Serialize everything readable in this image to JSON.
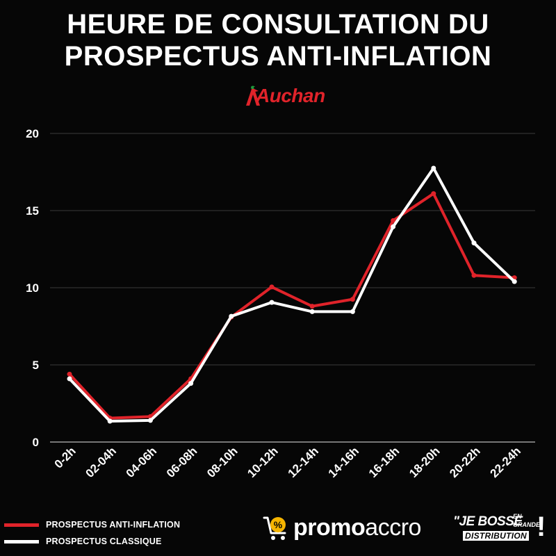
{
  "header": {
    "title_line1": "HEURE DE CONSULTATION DU",
    "title_line2": "PROSPECTUS ANTI-INFLATION",
    "brand_logo_text": "Auchan"
  },
  "colors": {
    "background": "#060606",
    "anti_inflation": "#e0232a",
    "classique": "#ffffff",
    "grid": "#3a3a3a",
    "promo_icon": "#f5b400"
  },
  "chart_data": {
    "type": "line",
    "categories": [
      "0-2h",
      "02-04h",
      "04-06h",
      "06-08h",
      "08-10h",
      "10-12h",
      "12-14h",
      "14-16h",
      "16-18h",
      "18-20h",
      "20-22h",
      "22-24h"
    ],
    "series": [
      {
        "name": "PROSPECTUS ANTI-INFLATION",
        "color": "#e0232a",
        "values": [
          4.4,
          1.55,
          1.65,
          4.1,
          8.1,
          10.05,
          8.8,
          9.25,
          14.35,
          16.1,
          10.8,
          10.65
        ]
      },
      {
        "name": "PROSPECTUS CLASSIQUE",
        "color": "#ffffff",
        "values": [
          4.1,
          1.35,
          1.4,
          3.8,
          8.15,
          9.05,
          8.45,
          8.45,
          13.95,
          17.75,
          12.9,
          10.4
        ]
      }
    ],
    "ylim": [
      0,
      20
    ],
    "yticks": [
      0,
      5,
      10,
      15,
      20
    ],
    "grid": true,
    "legend_position": "bottom-left"
  },
  "footer": {
    "legend": [
      {
        "label": "PROSPECTUS ANTI-INFLATION"
      },
      {
        "label": "PROSPECTUS CLASSIQUE"
      }
    ],
    "promo_logo": {
      "icon": "percent-cart-icon",
      "bold": "promo",
      "regular": "accro"
    },
    "jebosse_logo": {
      "quote": "\"",
      "main": "JE BOSSE",
      "en": "EN",
      "grande": "GRANDE",
      "distribution": "DISTRIBUTION",
      "exclamation": "!"
    }
  }
}
